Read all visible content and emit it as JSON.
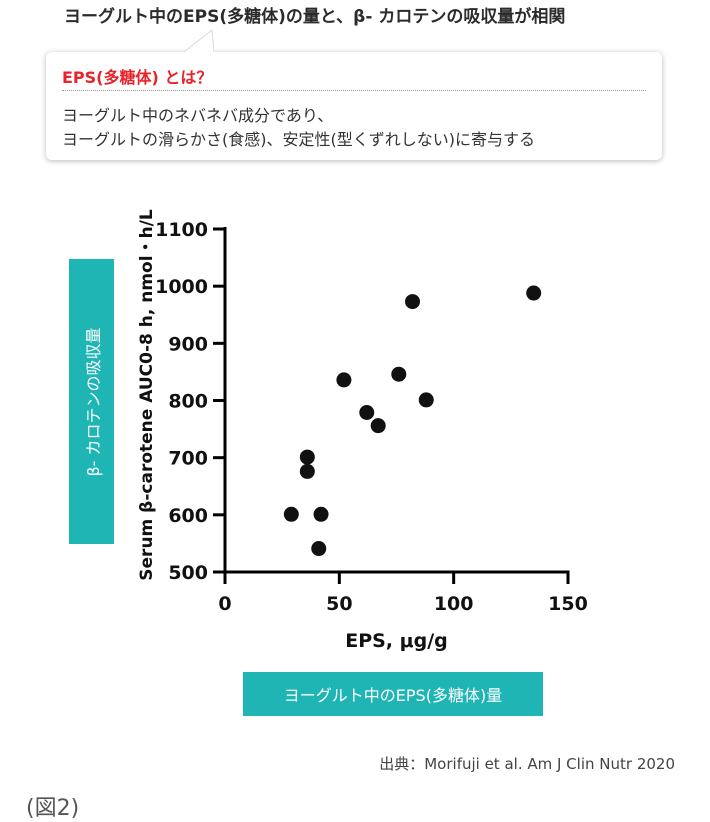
{
  "headline": "ヨーグルト中のEPS(多糖体)の量と、β- カロテンの吸収量が相関",
  "callout": {
    "title": "EPS(多糖体) とは？",
    "line1": "ヨーグルト中のネバネバ成分であり、",
    "line2": "ヨーグルトの滑らかさ(食感)、安定性(型くずれしない)に寄与する"
  },
  "ylabel_box": "β- カロテンの吸収量",
  "xlabel_box": "ヨーグルト中のEPS(多糖体)量",
  "source": "出典：Morifuji et al. Am J Clin Nutr 2020",
  "figure_label": "(図2)",
  "colors": {
    "teal": "#1fb5b5",
    "accent_red": "#e8232a",
    "point": "#111111"
  },
  "chart_data": {
    "type": "scatter",
    "xlabel": "EPS, μg/g",
    "ylabel": "Serum β-carotene AUC0-8 h, nmol・h/L",
    "xlim": [
      0,
      150
    ],
    "ylim": [
      500,
      1100
    ],
    "xticks": [
      0,
      50,
      100,
      150
    ],
    "yticks": [
      500,
      600,
      700,
      800,
      900,
      1000,
      1100
    ],
    "grid": false,
    "points": [
      {
        "x": 29,
        "y": 601
      },
      {
        "x": 36,
        "y": 701
      },
      {
        "x": 36,
        "y": 676
      },
      {
        "x": 41,
        "y": 541
      },
      {
        "x": 42,
        "y": 601
      },
      {
        "x": 52,
        "y": 836
      },
      {
        "x": 62,
        "y": 779
      },
      {
        "x": 67,
        "y": 756
      },
      {
        "x": 76,
        "y": 846
      },
      {
        "x": 82,
        "y": 973
      },
      {
        "x": 88,
        "y": 801
      },
      {
        "x": 135,
        "y": 988
      }
    ]
  }
}
